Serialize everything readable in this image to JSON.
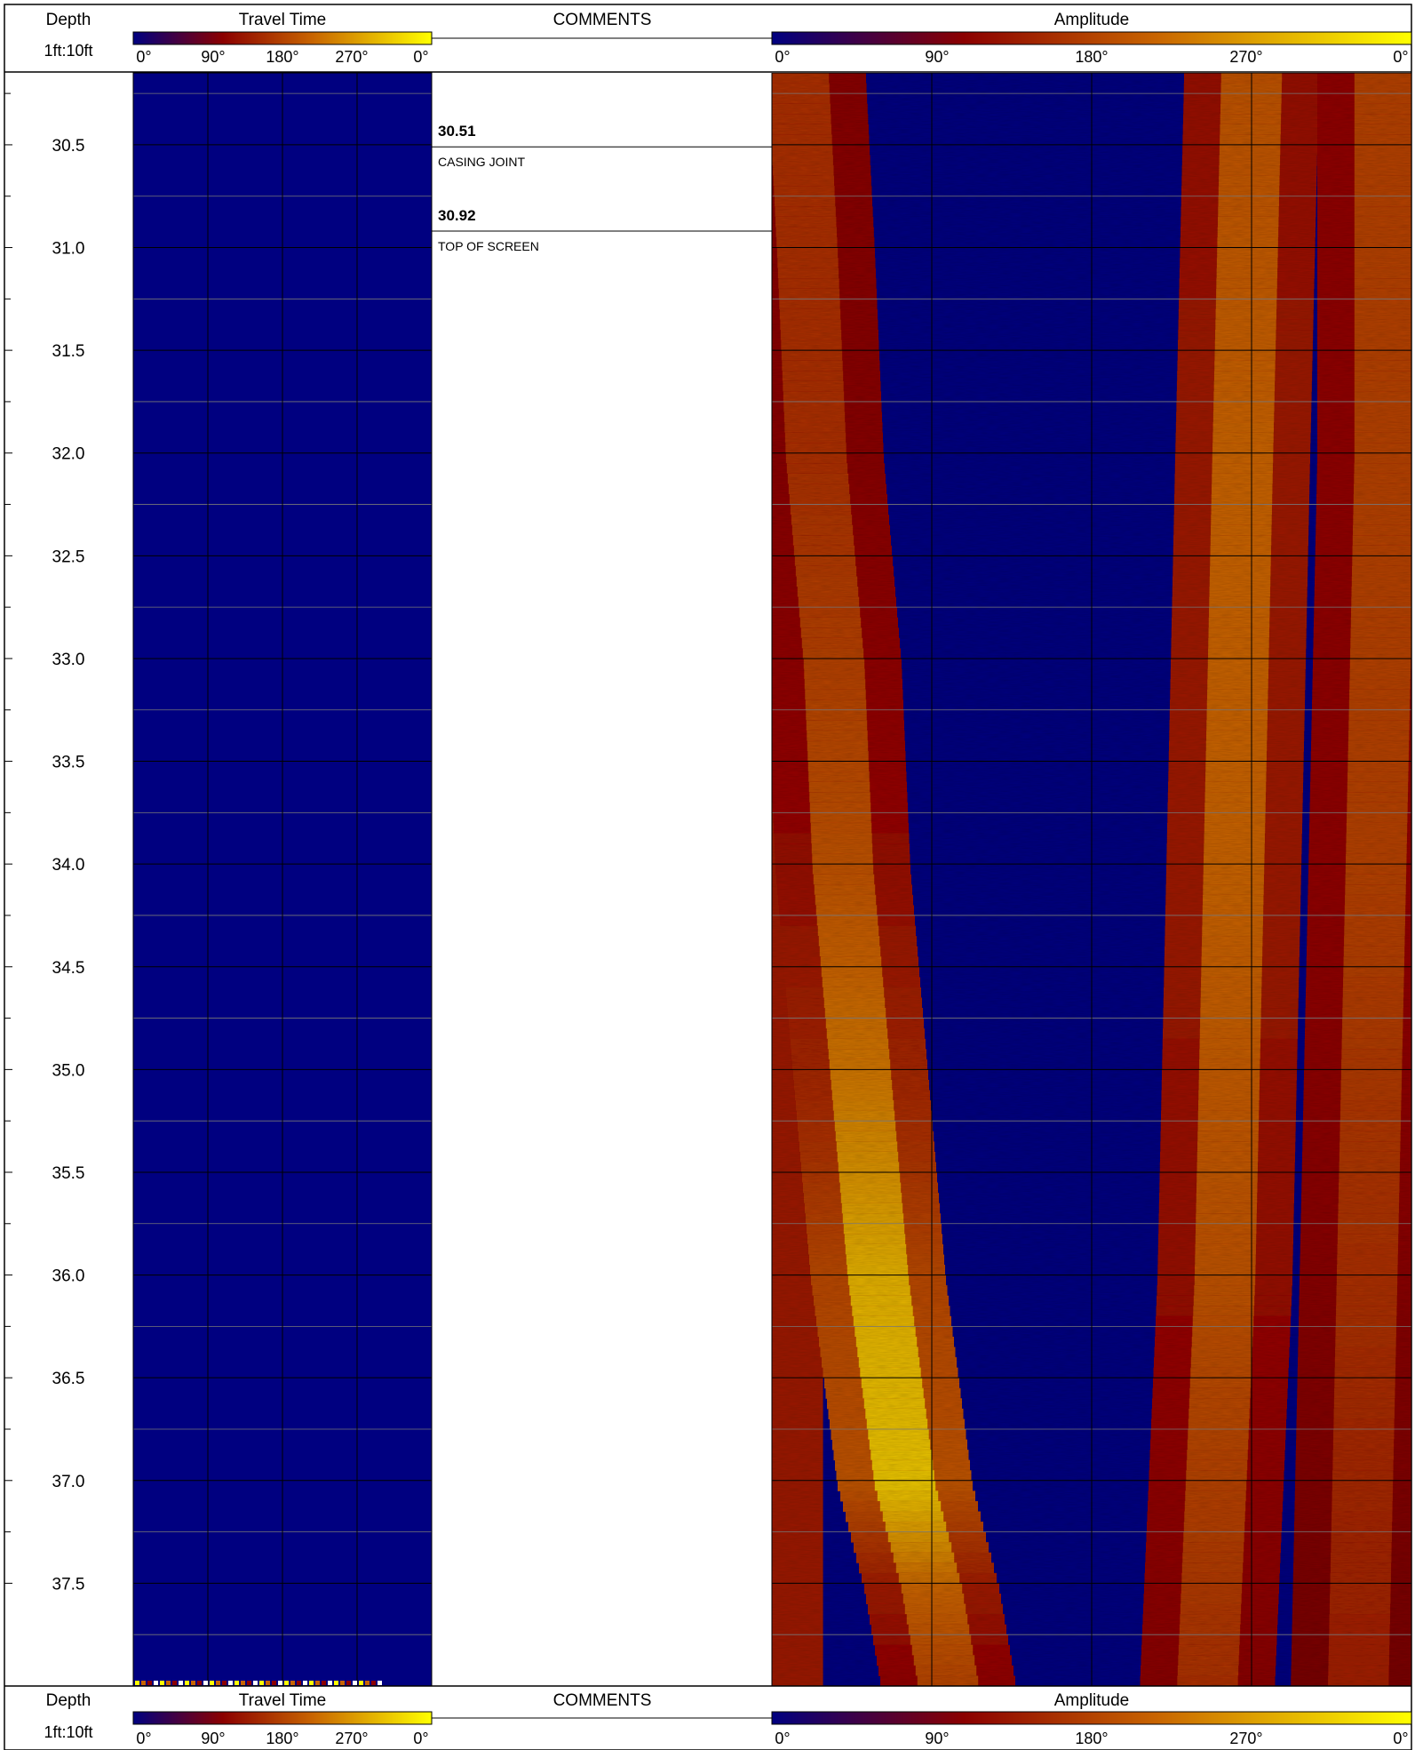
{
  "header": {
    "depth_title": "Depth",
    "depth_scale": "1ft:10ft",
    "travel_time_title": "Travel Time",
    "comments_title": "COMMENTS",
    "amplitude_title": "Amplitude",
    "travel_time_ticks": [
      "0°",
      "90°",
      "180°",
      "270°",
      "0°"
    ],
    "amplitude_ticks": [
      "0°",
      "90°",
      "180°",
      "270°",
      "0°"
    ]
  },
  "footer": {
    "depth_title": "Depth",
    "depth_scale": "1ft:10ft",
    "travel_time_title": "Travel Time",
    "comments_title": "COMMENTS",
    "amplitude_title": "Amplitude",
    "travel_time_ticks": [
      "0°",
      "90°",
      "180°",
      "270°",
      "0°"
    ],
    "amplitude_ticks": [
      "0°",
      "90°",
      "180°",
      "270°",
      "0°"
    ]
  },
  "colors": {
    "navy": "#000080",
    "maroon": "#8b0000",
    "orange": "#c86400",
    "gold": "#e8b020",
    "yellow": "#ffff00"
  },
  "chart_data": {
    "type": "heatmap",
    "depth_unit": "ft",
    "depth_range": [
      30.15,
      38.0
    ],
    "depth_labels": [
      "30.5",
      "31.0",
      "31.5",
      "32.0",
      "32.5",
      "33.0",
      "33.5",
      "34.0",
      "34.5",
      "35.0",
      "35.5",
      "36.0",
      "36.5",
      "37.0",
      "37.5"
    ],
    "azimuth_range": [
      0,
      360
    ],
    "colorscale": [
      "#000080",
      "#8b0000",
      "#c86400",
      "#ffff00"
    ],
    "comments": [
      {
        "depth": "30.51",
        "text": "CASING JOINT"
      },
      {
        "depth": "30.92",
        "text": "TOP OF SCREEN"
      }
    ],
    "travel_time": {
      "description_level": 0
    },
    "amplitude_bands": [
      {
        "name": "band-a",
        "depths": [
          30.15,
          31.0,
          32.0,
          33.0,
          34.0,
          35.0,
          36.0,
          37.0,
          37.5,
          38.0
        ],
        "center": [
          15,
          20,
          25,
          35,
          40,
          50,
          60,
          75,
          90,
          100
        ],
        "level": [
          0.45,
          0.45,
          0.45,
          0.5,
          0.55,
          0.65,
          0.8,
          0.85,
          0.6,
          0.5
        ]
      },
      {
        "name": "band-b",
        "depths": [
          30.15,
          32.0,
          34.0,
          36.0,
          37.0,
          38.0
        ],
        "center": [
          270,
          265,
          260,
          255,
          250,
          245
        ],
        "level": [
          0.55,
          0.6,
          0.6,
          0.55,
          0.5,
          0.45
        ]
      },
      {
        "name": "band-c",
        "depths": [
          30.15,
          32.0,
          34.0,
          36.0,
          38.0
        ],
        "center": [
          345,
          345,
          340,
          335,
          330
        ],
        "level": [
          0.5,
          0.5,
          0.5,
          0.45,
          0.4
        ]
      }
    ]
  }
}
